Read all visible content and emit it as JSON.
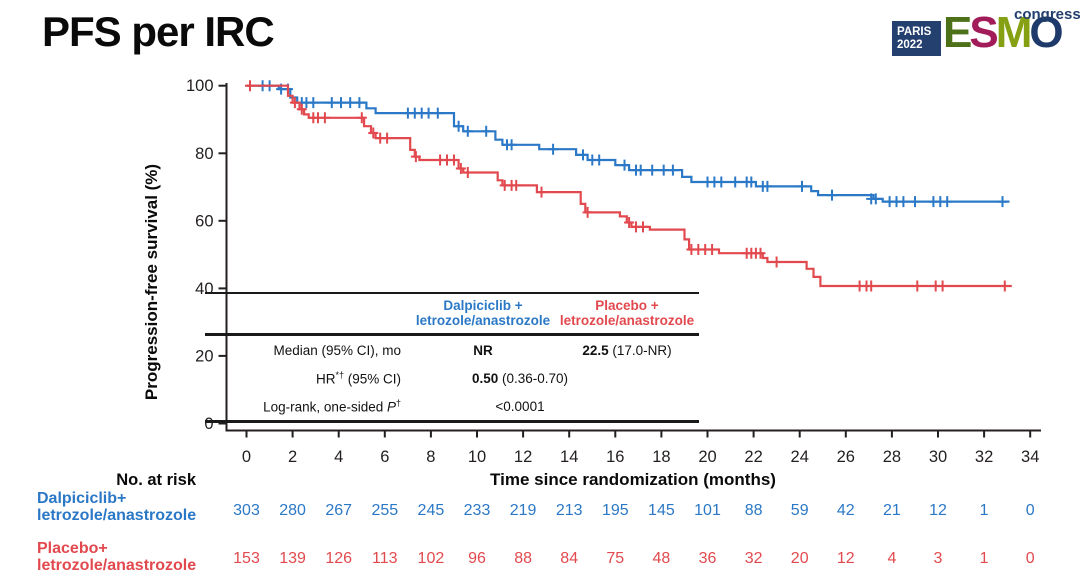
{
  "colors": {
    "dalpiciclib": "#2B78C6",
    "placebo": "#E2494E",
    "axis": "#231F20",
    "navy": "#24406E"
  },
  "slide": {
    "title": "PFS per IRC"
  },
  "logo": {
    "box_line1": "PARIS",
    "box_line2": "2022",
    "letters": [
      {
        "ch": "E",
        "color": "#4C7118"
      },
      {
        "ch": "S",
        "color": "#A21C59"
      },
      {
        "ch": "M",
        "color": "#86A014"
      },
      {
        "ch": "O",
        "color": "#1D3A6A"
      }
    ],
    "congress": "congress"
  },
  "chart_data": {
    "type": "line",
    "subtype": "kaplan-meier-step",
    "title": "PFS per IRC",
    "xlabel": "Time since randomization (months)",
    "ylabel": "Progression-free survival (%)",
    "xlim": [
      0,
      34
    ],
    "ylim": [
      0,
      100
    ],
    "x_ticks": [
      0,
      2,
      4,
      6,
      8,
      10,
      12,
      14,
      16,
      18,
      20,
      22,
      24,
      26,
      28,
      30,
      32,
      34
    ],
    "y_ticks": [
      0,
      20,
      40,
      60,
      80,
      100
    ],
    "grid": false,
    "legend_position": "none",
    "series": [
      {
        "id": "dalpiciclib",
        "name": "Dalpiciclib + letrozole/anastrozole",
        "color": "#2B78C6",
        "end_time": 33.1,
        "steps": [
          [
            0,
            100
          ],
          [
            1.4,
            99
          ],
          [
            1.9,
            96.5
          ],
          [
            2.2,
            95
          ],
          [
            5.2,
            93.3
          ],
          [
            5.6,
            91.9
          ],
          [
            9.0,
            88
          ],
          [
            9.4,
            86.5
          ],
          [
            10.8,
            84
          ],
          [
            11.1,
            82.5
          ],
          [
            12.7,
            81.2
          ],
          [
            14.3,
            79.5
          ],
          [
            14.8,
            78
          ],
          [
            16.0,
            76.5
          ],
          [
            16.6,
            75
          ],
          [
            18.9,
            73
          ],
          [
            19.3,
            71.5
          ],
          [
            22.1,
            70.2
          ],
          [
            24.5,
            68.8
          ],
          [
            24.8,
            67.6
          ],
          [
            27.2,
            66.5
          ],
          [
            27.6,
            65.7
          ]
        ],
        "censors": [
          [
            0.7,
            100
          ],
          [
            1.0,
            100
          ],
          [
            1.5,
            99
          ],
          [
            1.8,
            99
          ],
          [
            2.4,
            95
          ],
          [
            2.6,
            95
          ],
          [
            2.9,
            95
          ],
          [
            3.7,
            95
          ],
          [
            4.1,
            95
          ],
          [
            4.5,
            95
          ],
          [
            4.9,
            95
          ],
          [
            7.0,
            91.9
          ],
          [
            7.3,
            91.9
          ],
          [
            7.6,
            91.9
          ],
          [
            7.9,
            91.9
          ],
          [
            8.3,
            91.9
          ],
          [
            9.2,
            88
          ],
          [
            9.6,
            86.5
          ],
          [
            10.4,
            86.5
          ],
          [
            11.3,
            82.5
          ],
          [
            11.5,
            82.5
          ],
          [
            13.3,
            81.2
          ],
          [
            14.6,
            79.5
          ],
          [
            15.0,
            78
          ],
          [
            15.3,
            78
          ],
          [
            16.4,
            76.5
          ],
          [
            16.9,
            75
          ],
          [
            17.1,
            75
          ],
          [
            17.6,
            75
          ],
          [
            18.1,
            75
          ],
          [
            18.5,
            75
          ],
          [
            20.0,
            71.5
          ],
          [
            20.3,
            71.5
          ],
          [
            20.6,
            71.5
          ],
          [
            21.2,
            71.5
          ],
          [
            21.7,
            71.5
          ],
          [
            21.9,
            71.5
          ],
          [
            22.4,
            70.2
          ],
          [
            22.6,
            70.2
          ],
          [
            24.1,
            70.2
          ],
          [
            25.4,
            67.6
          ],
          [
            27.1,
            66.5
          ],
          [
            27.3,
            66.5
          ],
          [
            27.9,
            65.7
          ],
          [
            28.2,
            65.7
          ],
          [
            28.5,
            65.7
          ],
          [
            29.0,
            65.7
          ],
          [
            29.8,
            65.7
          ],
          [
            30.1,
            65.7
          ],
          [
            30.4,
            65.7
          ],
          [
            32.8,
            65.7
          ]
        ]
      },
      {
        "id": "placebo",
        "name": "Placebo + letrozole/anastrozole",
        "color": "#E2494E",
        "end_time": 33.2,
        "steps": [
          [
            0,
            100
          ],
          [
            1.8,
            97
          ],
          [
            2.0,
            95
          ],
          [
            2.3,
            93
          ],
          [
            2.5,
            91.5
          ],
          [
            2.7,
            90.5
          ],
          [
            5.1,
            88
          ],
          [
            5.4,
            86
          ],
          [
            5.6,
            84.5
          ],
          [
            7.1,
            81
          ],
          [
            7.3,
            79
          ],
          [
            7.5,
            78
          ],
          [
            9.2,
            75.5
          ],
          [
            9.4,
            74.3
          ],
          [
            10.9,
            72
          ],
          [
            11.1,
            70.5
          ],
          [
            12.6,
            68.5
          ],
          [
            14.5,
            65
          ],
          [
            14.7,
            62.5
          ],
          [
            16.2,
            61.3
          ],
          [
            16.5,
            59.5
          ],
          [
            16.7,
            58.2
          ],
          [
            17.5,
            57.4
          ],
          [
            19.0,
            54.5
          ],
          [
            19.2,
            51.5
          ],
          [
            20.5,
            50.4
          ],
          [
            22.4,
            49
          ],
          [
            22.6,
            47.8
          ],
          [
            24.3,
            45.8
          ],
          [
            24.6,
            43.4
          ],
          [
            24.9,
            40.7
          ]
        ],
        "censors": [
          [
            0.15,
            100
          ],
          [
            2.1,
            95
          ],
          [
            2.4,
            93
          ],
          [
            2.9,
            90.5
          ],
          [
            3.1,
            90.5
          ],
          [
            3.4,
            90.5
          ],
          [
            5.0,
            90.5
          ],
          [
            5.5,
            86
          ],
          [
            5.8,
            84.5
          ],
          [
            6.1,
            84.5
          ],
          [
            7.35,
            79
          ],
          [
            8.4,
            78
          ],
          [
            8.7,
            78
          ],
          [
            9.0,
            78
          ],
          [
            9.3,
            75.5
          ],
          [
            9.6,
            74.3
          ],
          [
            11.2,
            70.5
          ],
          [
            11.5,
            70.5
          ],
          [
            11.7,
            70.5
          ],
          [
            12.8,
            68.5
          ],
          [
            14.8,
            62.5
          ],
          [
            16.6,
            59.5
          ],
          [
            16.9,
            58.2
          ],
          [
            17.2,
            58.2
          ],
          [
            19.3,
            51.5
          ],
          [
            19.6,
            51.5
          ],
          [
            19.9,
            51.5
          ],
          [
            20.2,
            51.5
          ],
          [
            21.7,
            50.4
          ],
          [
            21.9,
            50.4
          ],
          [
            22.1,
            50.4
          ],
          [
            22.3,
            50.4
          ],
          [
            23.0,
            47.8
          ],
          [
            26.6,
            40.7
          ],
          [
            26.9,
            40.7
          ],
          [
            27.1,
            40.7
          ],
          [
            29.1,
            40.7
          ],
          [
            29.9,
            40.7
          ],
          [
            30.2,
            40.7
          ],
          [
            32.9,
            40.7
          ]
        ]
      }
    ],
    "at_risk": {
      "heading": "No. at risk",
      "time_points": [
        0,
        2,
        4,
        6,
        8,
        10,
        12,
        14,
        16,
        18,
        20,
        22,
        24,
        26,
        28,
        30,
        32,
        34
      ],
      "groups": [
        {
          "label_line1": "Dalpiciclib+",
          "label_line2": "letrozole/anastrozole",
          "color": "#2B78C6",
          "counts": [
            303,
            280,
            267,
            255,
            245,
            233,
            219,
            213,
            195,
            145,
            101,
            88,
            59,
            42,
            21,
            12,
            1,
            0
          ]
        },
        {
          "label_line1": "Placebo+",
          "label_line2": "letrozole/anastrozole",
          "color": "#E2494E",
          "counts": [
            153,
            139,
            126,
            113,
            102,
            96,
            88,
            84,
            75,
            48,
            36,
            32,
            20,
            12,
            4,
            3,
            1,
            0
          ]
        }
      ]
    }
  },
  "stats_table": {
    "col_dal_line1": "Dalpiciclib +",
    "col_dal_line2": "letrozole/anastrozole",
    "col_pbo_line1": "Placebo +",
    "col_pbo_line2": "letrozole/anastrozole",
    "rows": {
      "median_label": "Median (95% CI), mo",
      "median_dal": "NR",
      "median_pbo_bold": "22.5",
      "median_pbo_rest": " (17.0-NR)",
      "hr_label_main": "HR",
      "hr_label_sup": "*†",
      "hr_label_rest": " (95% CI)",
      "hr_bold": "0.50",
      "hr_rest": " (0.36-0.70)",
      "logrank_label_main": "Log-rank, one-sided ",
      "logrank_p": "P",
      "logrank_sup": "†",
      "p_value": "<0.0001"
    }
  }
}
